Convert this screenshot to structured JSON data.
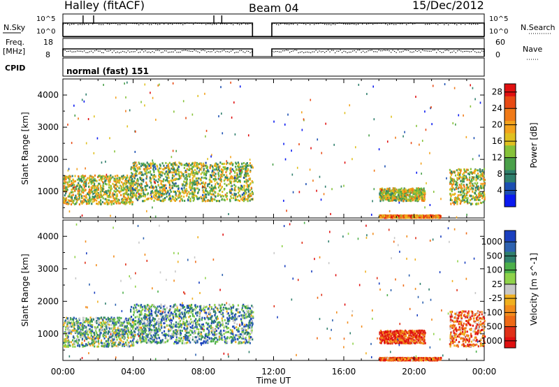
{
  "header": {
    "station": "Halley (fitACF)",
    "beam": "Beam 04",
    "date": "15/Dec/2012"
  },
  "strips": {
    "nsky": {
      "label": "N.Sky",
      "ticks": [
        "10^5",
        "10^0"
      ]
    },
    "nsearch": {
      "label": "N.Search",
      "ticks": [
        "10^5",
        "10^0"
      ]
    },
    "freq": {
      "label_line1": "Freq.",
      "label_line2": "[MHz]",
      "ticks": [
        "18",
        "8"
      ]
    },
    "nave": {
      "label": "Nave",
      "ticks": [
        "60",
        "0"
      ]
    },
    "cpid": {
      "label": "CPID",
      "mode_text": "normal (fast) 151"
    }
  },
  "chart_data": [
    {
      "type": "heatmap",
      "name": "power",
      "ylabel": "Slant Range [km]",
      "xlabel": "",
      "xlim_hours": [
        0,
        24
      ],
      "ylim_km": [
        180,
        4500
      ],
      "yticks": [
        1000,
        2000,
        3000,
        4000
      ],
      "colorbar": {
        "label": "Power [dB]",
        "ticks": [
          "4",
          "8",
          "12",
          "16",
          "20",
          "24",
          "28"
        ],
        "range": [
          0,
          30
        ],
        "colors": [
          "#0a1af0",
          "#1b4fb2",
          "#2f7f6c",
          "#4aa04a",
          "#86c23a",
          "#e0c020",
          "#f3a21c",
          "#f07a18",
          "#e84a14",
          "#e01010"
        ]
      },
      "echo_regions": [
        {
          "t0": 0.0,
          "t1": 4.0,
          "r0": 600,
          "r1": 1500,
          "level": 0.5
        },
        {
          "t0": 3.8,
          "t1": 10.8,
          "r0": 700,
          "r1": 1900,
          "level": 0.45
        },
        {
          "t0": 18.0,
          "t1": 20.6,
          "r0": 700,
          "r1": 1100,
          "level": 0.5
        },
        {
          "t0": 22.0,
          "t1": 24.0,
          "r0": 600,
          "r1": 1700,
          "level": 0.5
        },
        {
          "t0": 18.0,
          "t1": 21.5,
          "r0": 180,
          "r1": 260,
          "level": 0.75
        }
      ]
    },
    {
      "type": "heatmap",
      "name": "velocity",
      "ylabel": "Slant Range [km]",
      "xlabel": "Time UT",
      "xlim_hours": [
        0,
        24
      ],
      "ylim_km": [
        180,
        4500
      ],
      "yticks": [
        1000,
        2000,
        3000,
        4000
      ],
      "xticks": [
        "00:00",
        "04:00",
        "08:00",
        "12:00",
        "16:00",
        "20:00",
        "00:00"
      ],
      "colorbar": {
        "label": "Velocity [m s^-1]",
        "ticks": [
          "1000",
          "500",
          "100",
          "25",
          "-25",
          "-100",
          "-500",
          "-1000"
        ],
        "colors": [
          "#1a3fbf",
          "#2d62b0",
          "#2f7f6c",
          "#4caf4a",
          "#8fd24a",
          "#c8c8c8",
          "#f0b020",
          "#f28c1c",
          "#ee6a16",
          "#e03018",
          "#e01010"
        ]
      },
      "echo_regions": [
        {
          "t0": 0.0,
          "t1": 4.0,
          "r0": 600,
          "r1": 1500,
          "level": 0.35
        },
        {
          "t0": 3.8,
          "t1": 10.8,
          "r0": 700,
          "r1": 1900,
          "level": 0.3
        },
        {
          "t0": 18.0,
          "t1": 20.6,
          "r0": 700,
          "r1": 1100,
          "level": 0.85
        },
        {
          "t0": 22.0,
          "t1": 24.0,
          "r0": 600,
          "r1": 1700,
          "level": 0.75
        },
        {
          "t0": 18.0,
          "t1": 21.5,
          "r0": 180,
          "r1": 260,
          "level": 0.8
        }
      ]
    }
  ],
  "data_gap_hours": [
    10.8,
    11.9
  ]
}
